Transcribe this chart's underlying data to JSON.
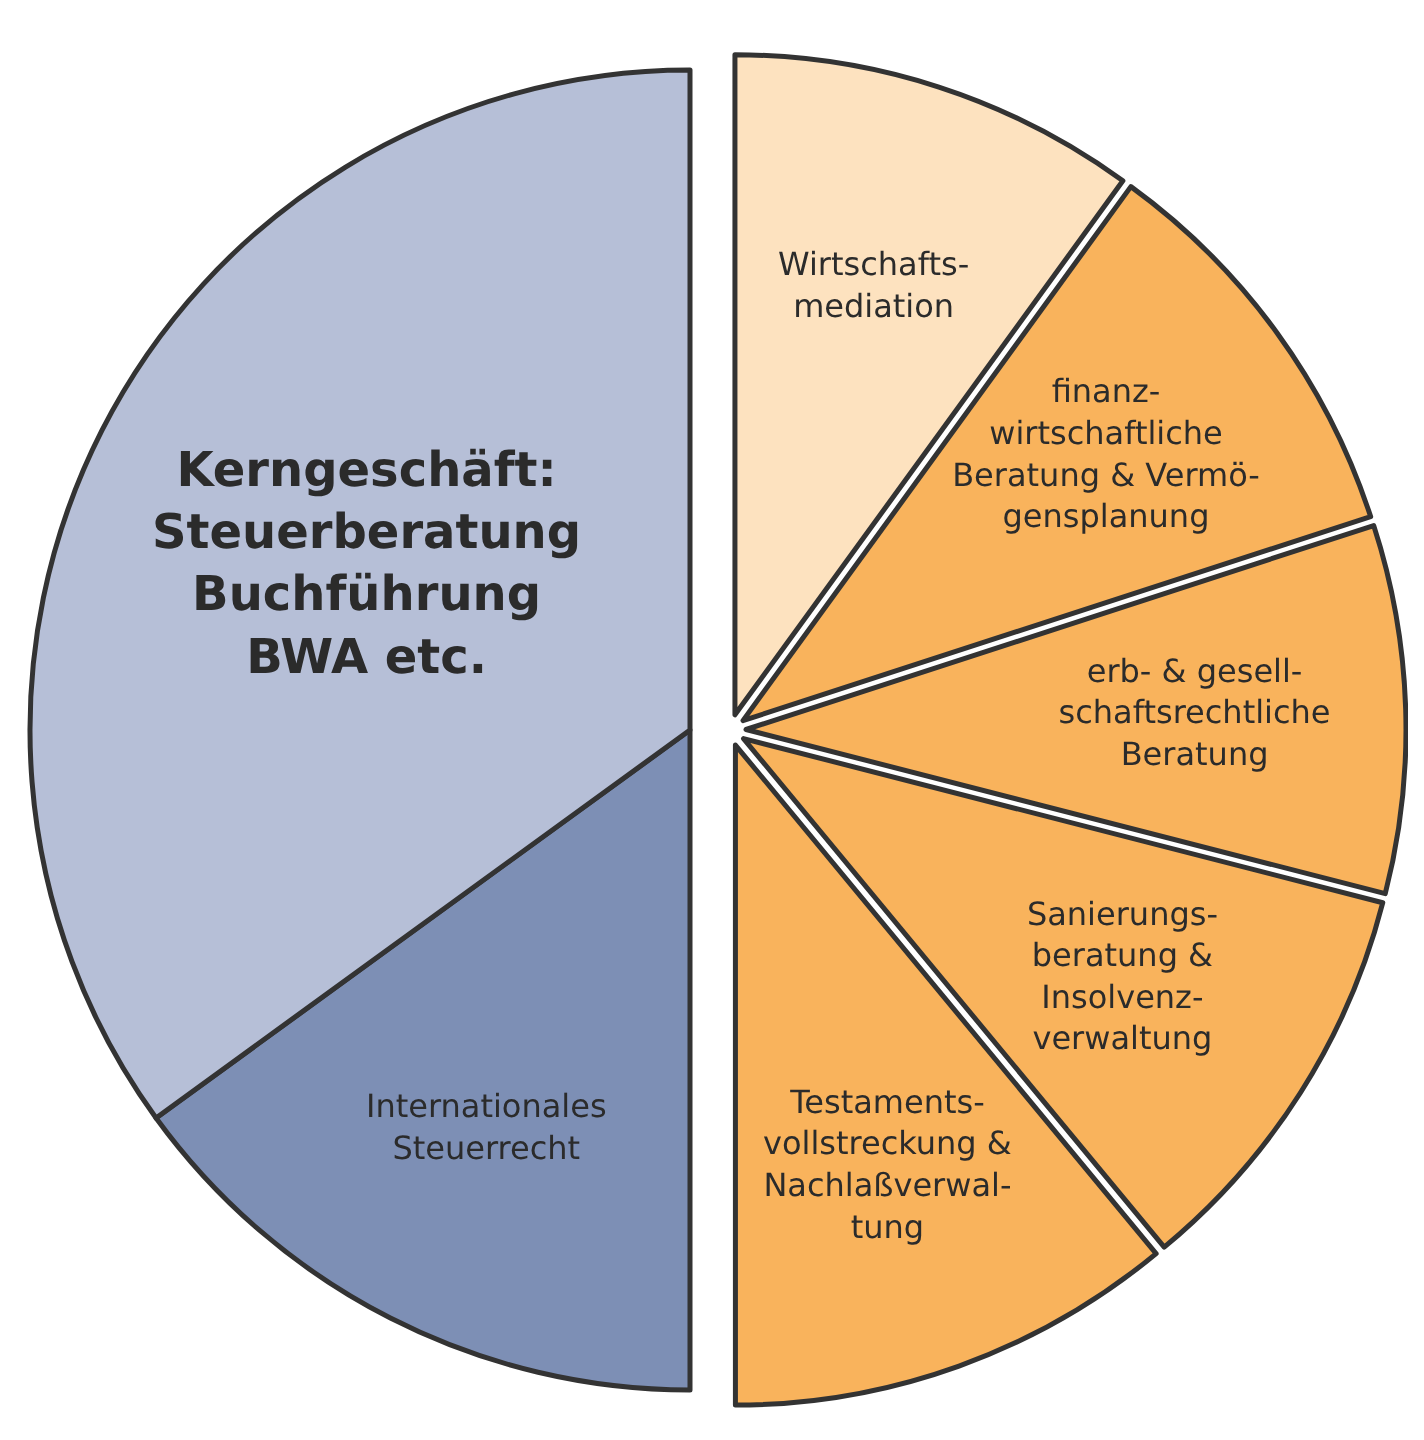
{
  "chart_data": {
    "type": "pie",
    "categories": [
      "Wirtschafts-\nmediation",
      "finanz-\nwirtschaftliche\nBeratung & Vermö-\ngensplanung",
      "erb- & gesell-\nschaftsrechtliche\nBeratung",
      "Sanierungs-\nberatung &\nInsolvenz-\nverwaltung",
      "Testaments-\nvollstreckung &\nNachlaßverwal-\ntung",
      "Internationales\nSteuerrecht",
      "Kerngeschäft:\nSteuerberatung\nBuchführung\nBWA etc."
    ],
    "values": [
      10,
      10,
      9,
      10,
      11,
      15,
      35
    ],
    "colors": [
      "#fde2bf",
      "#f9b35c",
      "#f9b35c",
      "#f9b35c",
      "#f9b35c",
      "#7d8fb5",
      "#b6bfd7"
    ]
  }
}
